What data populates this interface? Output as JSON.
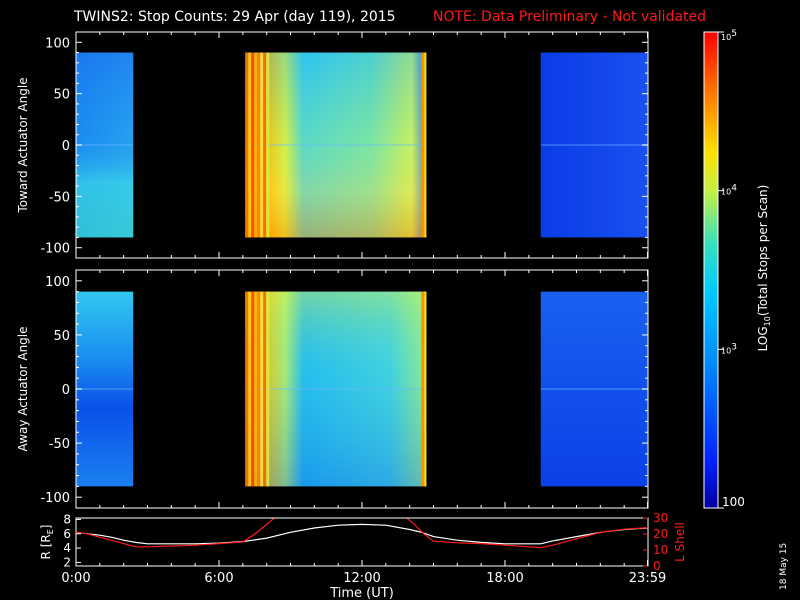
{
  "header": {
    "title": "TWINS2: Stop Counts: 29 Apr (day 119), 2015",
    "note": "NOTE: Data Preliminary - Not validated"
  },
  "colors": {
    "note": "#ff1a1a",
    "lshell": "#ff1a1a",
    "radius": "#ffffff",
    "axis": "#ffffff",
    "background": "#000000"
  },
  "colorbar": {
    "label": "LOG10(Total Stops per Scan)",
    "label_prefix": "LOG",
    "label_sub": "10",
    "label_suffix": "(Total Stops per Scan)",
    "log_min": 2,
    "log_max": 5,
    "ticks": [
      {
        "text": "100",
        "log": 2
      },
      {
        "text": "10",
        "sup": "3",
        "log": 3
      },
      {
        "text": "10",
        "sup": "4",
        "log": 4
      },
      {
        "text": "10",
        "sup": "5",
        "log": 5
      }
    ]
  },
  "date_stamp": "18 May 15",
  "chart_data": [
    {
      "type": "heatmap",
      "title": "Toward Actuator Angle",
      "ylabel": "Toward Actuator Angle",
      "xlim": [
        0,
        24
      ],
      "ylim": [
        -110,
        110
      ],
      "yticks": [
        -100,
        -50,
        0,
        50,
        100
      ],
      "data_y_range": [
        -90,
        90
      ],
      "scan_intervals_hours": [
        [
          0.0,
          2.4
        ],
        [
          7.1,
          14.7
        ],
        [
          19.5,
          24.0
        ]
      ],
      "z_units": "log10 total stops per scan",
      "z_range": [
        2,
        5
      ]
    },
    {
      "type": "heatmap",
      "title": "Away Actuator Angle",
      "ylabel": "Away Actuator Angle",
      "xlim": [
        0,
        24
      ],
      "ylim": [
        -110,
        110
      ],
      "yticks": [
        -100,
        -50,
        0,
        50,
        100
      ],
      "data_y_range": [
        -90,
        90
      ],
      "scan_intervals_hours": [
        [
          0.0,
          2.4
        ],
        [
          7.1,
          14.7
        ],
        [
          19.5,
          24.0
        ]
      ],
      "z_units": "log10 total stops per scan",
      "z_range": [
        2,
        5
      ]
    },
    {
      "type": "line",
      "xlabel": "Time (UT)",
      "xlim": [
        0,
        24
      ],
      "xticks": [
        {
          "label": "0:00",
          "hour": 0
        },
        {
          "label": "6:00",
          "hour": 6
        },
        {
          "label": "12:00",
          "hour": 12
        },
        {
          "label": "18:00",
          "hour": 18
        },
        {
          "label": "23:59",
          "hour": 23.98
        }
      ],
      "left_axis": {
        "label": "R [R",
        "label_sub": "E",
        "label_end": "]",
        "ylim": [
          1.5,
          8.2
        ],
        "ticks": [
          2,
          4,
          6,
          8
        ]
      },
      "right_axis": {
        "label": "L Shell",
        "ylim": [
          0,
          30
        ],
        "ticks": [
          0,
          10,
          20,
          30
        ]
      },
      "series": [
        {
          "name": "R [RE]",
          "axis": "left",
          "x": [
            0,
            0.5,
            1,
            1.5,
            2,
            2.5,
            3,
            4,
            5,
            6,
            7,
            8,
            9,
            10,
            11,
            12,
            13,
            14,
            14.5,
            15,
            16,
            17,
            18,
            19,
            19.5,
            20,
            21,
            22,
            23,
            24
          ],
          "y": [
            6.2,
            6.0,
            5.8,
            5.5,
            5.1,
            4.8,
            4.6,
            4.6,
            4.6,
            4.7,
            4.9,
            5.4,
            6.2,
            6.8,
            7.2,
            7.3,
            7.2,
            6.6,
            6.2,
            5.6,
            5.1,
            4.8,
            4.6,
            4.6,
            4.6,
            5.0,
            5.6,
            6.2,
            6.6,
            6.8
          ]
        },
        {
          "name": "L Shell",
          "axis": "right",
          "x": [
            0,
            0.5,
            1,
            1.5,
            2,
            2.5,
            3,
            4,
            5,
            6,
            6.5,
            7,
            7.5,
            8,
            8.4,
            13.8,
            14.2,
            14.6,
            15,
            16,
            17,
            18,
            19,
            19.5,
            20,
            21,
            22,
            23,
            24
          ],
          "y": [
            21,
            20,
            18,
            16,
            14,
            12,
            12,
            12.5,
            13,
            14,
            14.5,
            15,
            20,
            26,
            31,
            31,
            26,
            20,
            15.5,
            14.5,
            14,
            13,
            12,
            11.5,
            13,
            17,
            21,
            23,
            24
          ]
        }
      ]
    }
  ]
}
